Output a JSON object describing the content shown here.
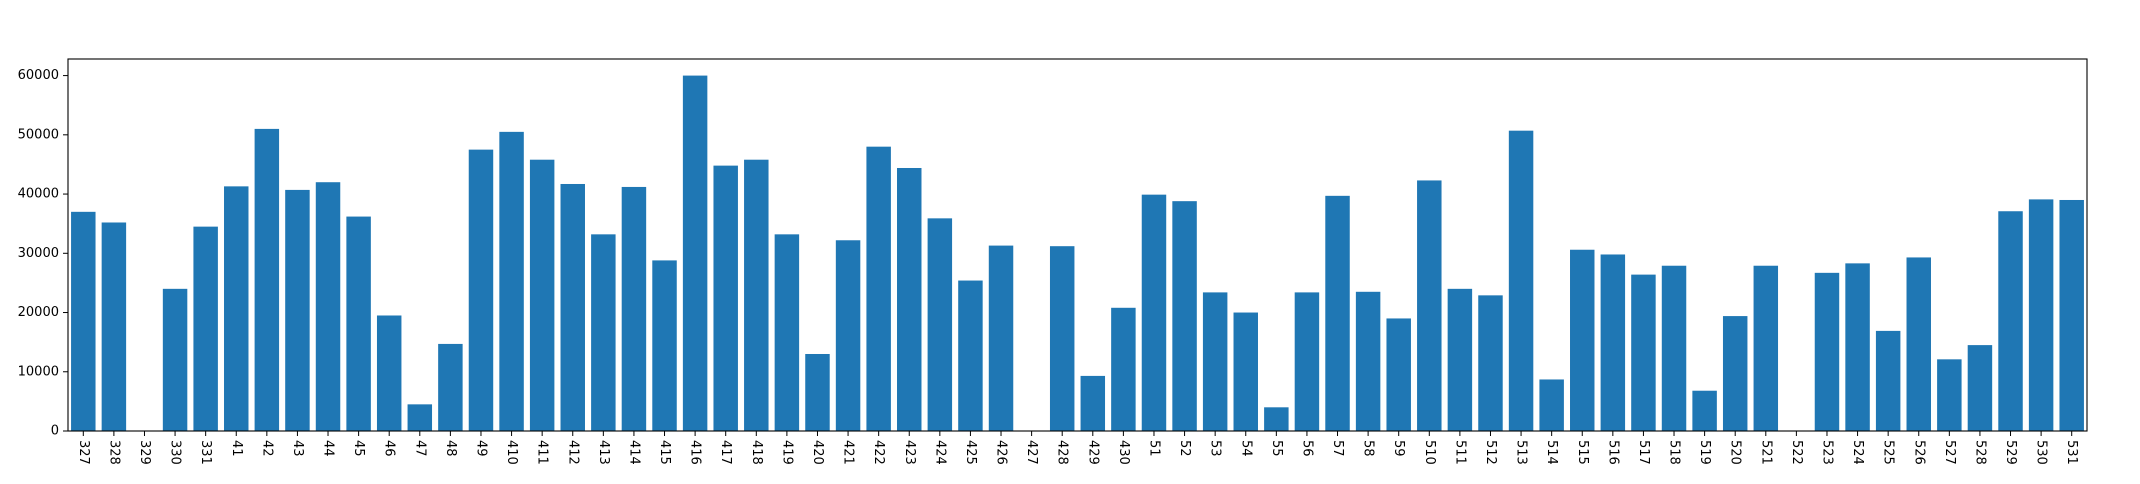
{
  "chart_data": {
    "type": "bar",
    "title": "",
    "xlabel": "",
    "ylabel": "",
    "categories": [
      "327",
      "328",
      "329",
      "330",
      "331",
      "41",
      "42",
      "43",
      "44",
      "45",
      "46",
      "47",
      "48",
      "49",
      "410",
      "411",
      "412",
      "413",
      "414",
      "415",
      "416",
      "417",
      "418",
      "419",
      "420",
      "421",
      "422",
      "423",
      "424",
      "425",
      "426",
      "427",
      "428",
      "429",
      "430",
      "51",
      "52",
      "53",
      "54",
      "55",
      "56",
      "57",
      "58",
      "59",
      "510",
      "511",
      "512",
      "513",
      "514",
      "515",
      "516",
      "517",
      "518",
      "519",
      "520",
      "521",
      "522",
      "523",
      "524",
      "525",
      "526",
      "527",
      "528",
      "529",
      "530",
      "531"
    ],
    "values": [
      37000,
      35200,
      0,
      24000,
      34500,
      41300,
      51000,
      40700,
      42000,
      36200,
      19500,
      4500,
      14700,
      47500,
      50500,
      45800,
      41700,
      33200,
      41200,
      28800,
      60000,
      44800,
      45800,
      33200,
      13000,
      32200,
      48000,
      44400,
      35900,
      25400,
      31300,
      0,
      31200,
      9300,
      20800,
      39900,
      38800,
      23400,
      20000,
      4000,
      23400,
      39700,
      23500,
      19000,
      42300,
      24000,
      22900,
      50700,
      8700,
      30600,
      29800,
      26400,
      27900,
      6800,
      19400,
      27900,
      0,
      26700,
      28300,
      16900,
      29300,
      12100,
      14500,
      37100,
      39100,
      39000
    ],
    "ylim": [
      0,
      62800
    ],
    "yticks": [
      0,
      10000,
      20000,
      30000,
      40000,
      50000,
      60000
    ],
    "ytick_labels": [
      "0",
      "10000",
      "20000",
      "30000",
      "40000",
      "50000",
      "60000"
    ],
    "bar_color": "#1f77b4",
    "grid": false,
    "legend": "none"
  }
}
